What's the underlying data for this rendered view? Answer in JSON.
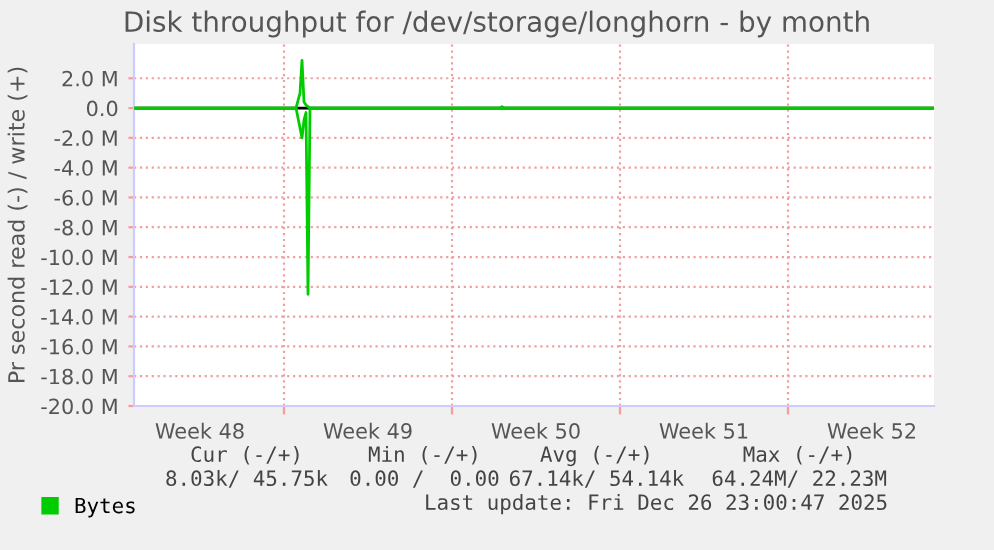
{
  "chart_data": {
    "type": "line",
    "title": "Disk throughput for /dev/storage/longhorn - by month",
    "ylabel": "Pr second read (-) / write (+)",
    "series": [
      {
        "name": "Bytes",
        "color": "#00cc00",
        "x": [
          "2025-11-23T18:00",
          "2025-11-30T12:00",
          "2025-11-30T16:00",
          "2025-11-30T18:00",
          "2025-11-30T20:00",
          "2025-11-30T22:00",
          "2025-12-01T02:00",
          "2025-12-09T00:00",
          "2025-12-09T02:00",
          "2025-12-09T04:00",
          "2025-12-27T02:00"
        ],
        "values": [
          0,
          0,
          1.0,
          3.2,
          0.4,
          0.2,
          0,
          0,
          0.1,
          0,
          0
        ]
      },
      {
        "color": "#00cc00",
        "x": [
          "2025-11-23T18:00",
          "2025-11-30T12:00",
          "2025-11-30T18:00",
          "2025-11-30T20:00",
          "2025-11-30T22:00",
          "2025-12-01T00:00",
          "2025-12-01T02:00",
          "2025-12-27T02:00"
        ],
        "values": [
          0,
          0,
          -2.0,
          -0.8,
          -0.3,
          -12.5,
          0,
          0
        ]
      }
    ],
    "xlim": [
      "2025-11-23T18:00",
      "2025-12-27T02:00"
    ],
    "xticks": [
      {
        "value": "2025-11-30T00:00",
        "label": null
      },
      {
        "value": "2025-12-07T00:00",
        "label": null
      },
      {
        "value": "2025-12-14T00:00",
        "label": null
      },
      {
        "value": "2025-12-21T00:00",
        "label": null
      },
      {
        "value": "2025-11-26T12:00",
        "label": "Week 48"
      },
      {
        "value": "2025-12-03T12:00",
        "label": "Week 49"
      },
      {
        "value": "2025-12-10T12:00",
        "label": "Week 50"
      },
      {
        "value": "2025-12-17T12:00",
        "label": "Week 51"
      },
      {
        "value": "2025-12-24T12:00",
        "label": "Week 52"
      }
    ],
    "ylim": [
      -20,
      4.3
    ],
    "yticks": [
      {
        "value": 2,
        "label": "2.0 M"
      },
      {
        "value": 0,
        "label": "0.0"
      },
      {
        "value": -2,
        "label": "-2.0 M"
      },
      {
        "value": -4,
        "label": "-4.0 M"
      },
      {
        "value": -6,
        "label": "-6.0 M"
      },
      {
        "value": -8,
        "label": "-8.0 M"
      },
      {
        "value": -10,
        "label": "-10.0 M"
      },
      {
        "value": -12,
        "label": "-12.0 M"
      },
      {
        "value": -14,
        "label": "-14.0 M"
      },
      {
        "value": -16,
        "label": "-16.0 M"
      },
      {
        "value": -18,
        "label": "-18.0 M"
      },
      {
        "value": -20,
        "label": "-20.0 M"
      }
    ],
    "ref_lines": [
      {
        "axis": "y",
        "value": 0,
        "color": "#000000"
      }
    ],
    "grid": true,
    "legend": "bottom",
    "marker": "none",
    "line_style": "solid",
    "annotations": [
      "Cur (-/+)",
      "Min (-/+)",
      "Avg (-/+)",
      "Max (-/+)",
      "8.03k/ 45.75k",
      "0.00 /  0.00",
      "67.14k/ 54.14k",
      "64.24M/ 22.23M",
      "Last update: Fri Dec 26 23:00:47 2025"
    ]
  }
}
